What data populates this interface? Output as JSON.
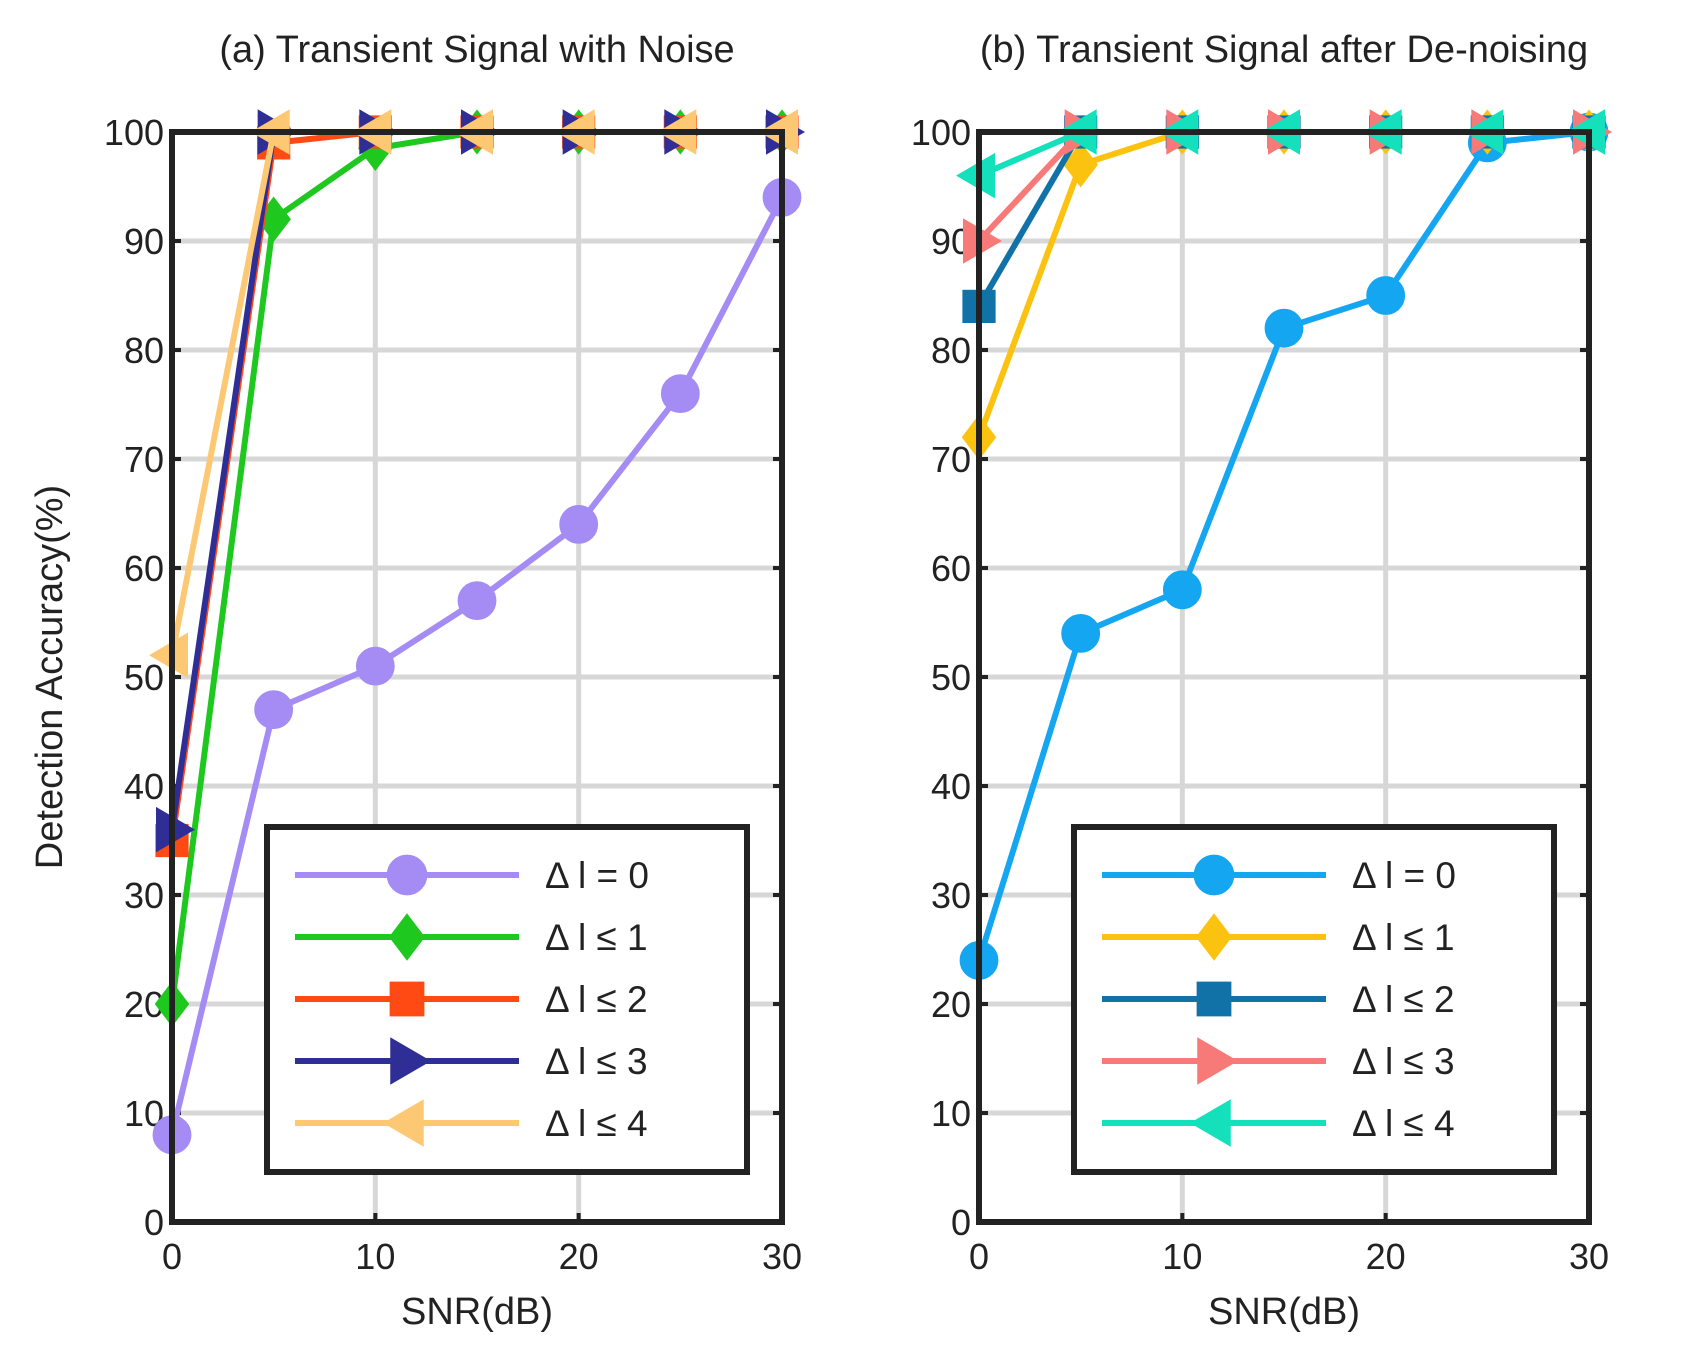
{
  "chart_data": [
    {
      "type": "line",
      "title": "(a) Transient Signal with Noise",
      "xlabel": "SNR(dB)",
      "ylabel": "Detection Accuracy(%)",
      "xlim": [
        0,
        30
      ],
      "ylim": [
        0,
        100
      ],
      "xticks": [
        0,
        10,
        20,
        30
      ],
      "yticks": [
        0,
        10,
        20,
        30,
        40,
        50,
        60,
        70,
        80,
        90,
        100
      ],
      "grid": true,
      "legend_position": "bottom-right",
      "x": [
        0,
        5,
        10,
        15,
        20,
        25,
        30
      ],
      "series": [
        {
          "name": "Δ l = 0",
          "color": "#a48cf4",
          "marker": "circle",
          "values": [
            8,
            47,
            51,
            57,
            64,
            76,
            94
          ]
        },
        {
          "name": "Δ l ≤ 1",
          "color": "#1fc81f",
          "marker": "diamond",
          "values": [
            20,
            92,
            98.5,
            100,
            100,
            100,
            100
          ]
        },
        {
          "name": "Δ l ≤ 2",
          "color": "#ff4a14",
          "marker": "square",
          "values": [
            35,
            99,
            100,
            100,
            100,
            100,
            100
          ]
        },
        {
          "name": "Δ l ≤ 3",
          "color": "#2e2e96",
          "marker": "triangle-right",
          "values": [
            36,
            100,
            100,
            100,
            100,
            100,
            100
          ]
        },
        {
          "name": "Δ l ≤ 4",
          "color": "#fdc874",
          "marker": "triangle-left",
          "values": [
            52,
            100,
            100,
            100,
            100,
            100,
            100
          ]
        }
      ]
    },
    {
      "type": "line",
      "title": "(b) Transient Signal after De-noising",
      "xlabel": "SNR(dB)",
      "ylabel": "",
      "xlim": [
        0,
        30
      ],
      "ylim": [
        0,
        100
      ],
      "xticks": [
        0,
        10,
        20,
        30
      ],
      "yticks": [
        0,
        10,
        20,
        30,
        40,
        50,
        60,
        70,
        80,
        90,
        100
      ],
      "grid": true,
      "legend_position": "bottom-right",
      "x": [
        0,
        5,
        10,
        15,
        20,
        25,
        30
      ],
      "series": [
        {
          "name": "Δ l = 0",
          "color": "#14a6f0",
          "marker": "circle",
          "values": [
            24,
            54,
            58,
            82,
            85,
            99,
            100
          ]
        },
        {
          "name": "Δ l ≤ 1",
          "color": "#fbc30f",
          "marker": "diamond",
          "values": [
            72,
            97,
            100,
            100,
            100,
            100,
            100
          ]
        },
        {
          "name": "Δ l ≤ 2",
          "color": "#1172a8",
          "marker": "square",
          "values": [
            84,
            100,
            100,
            100,
            100,
            100,
            100
          ]
        },
        {
          "name": "Δ l ≤ 3",
          "color": "#f87a78",
          "marker": "triangle-right",
          "values": [
            90,
            100,
            100,
            100,
            100,
            100,
            100
          ]
        },
        {
          "name": "Δ l ≤ 4",
          "color": "#14e0bc",
          "marker": "triangle-left",
          "values": [
            96,
            100,
            100,
            100,
            100,
            100,
            100
          ]
        }
      ]
    }
  ]
}
